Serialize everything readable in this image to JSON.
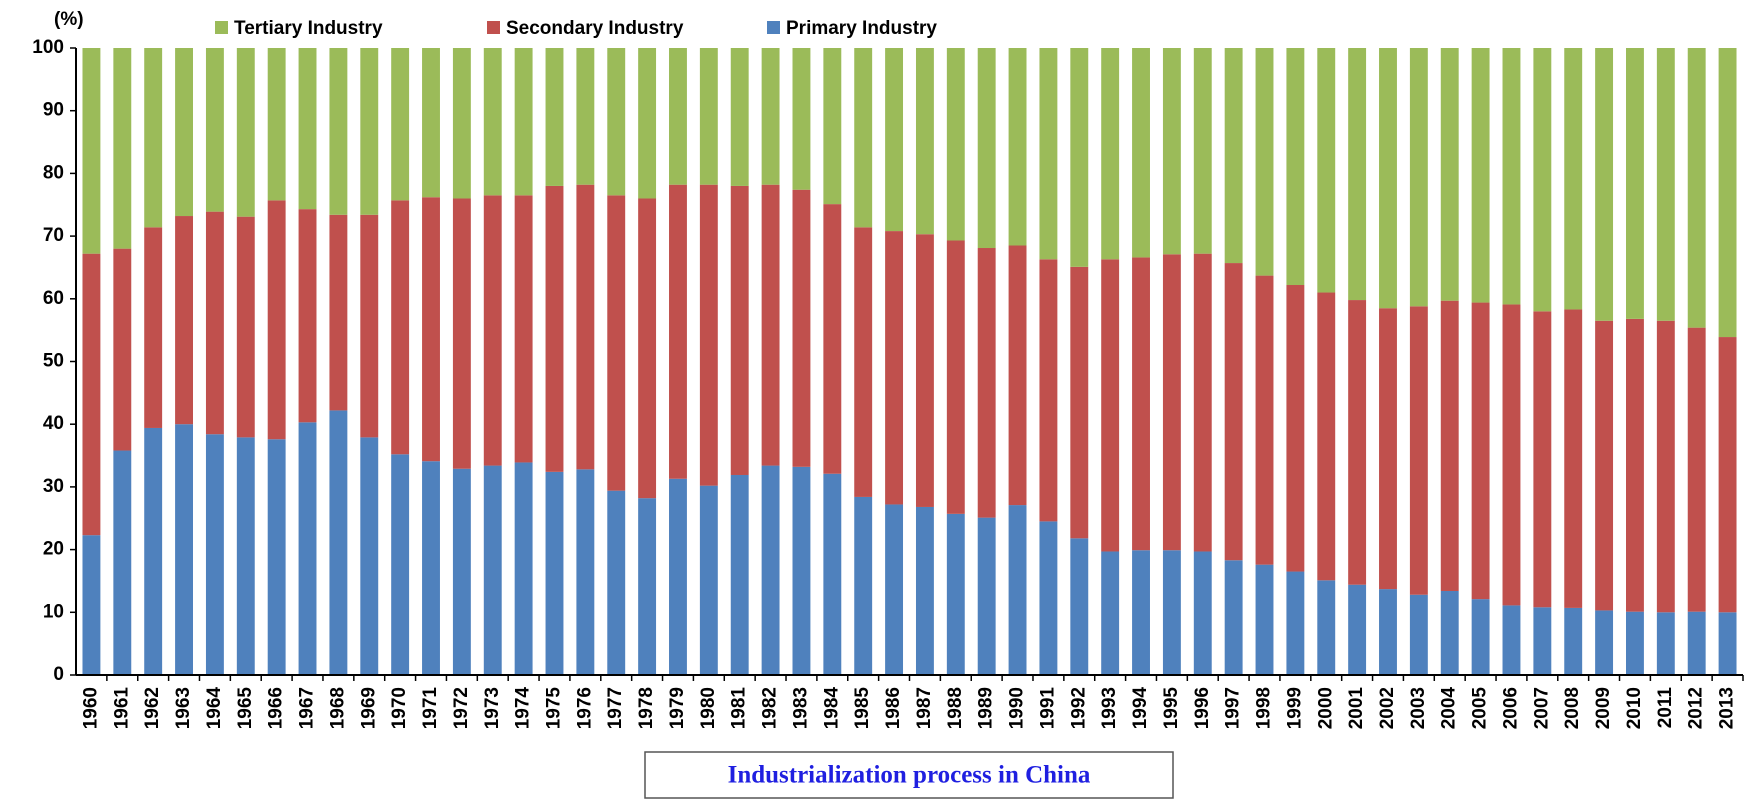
{
  "chart_data": {
    "type": "stacked_bar",
    "title": "Industrialization process in China",
    "y_label": "(%)",
    "categories": [
      "1960",
      "1961",
      "1962",
      "1963",
      "1964",
      "1965",
      "1966",
      "1967",
      "1968",
      "1969",
      "1970",
      "1971",
      "1972",
      "1973",
      "1974",
      "1975",
      "1976",
      "1977",
      "1978",
      "1979",
      "1980",
      "1981",
      "1982",
      "1983",
      "1984",
      "1985",
      "1986",
      "1987",
      "1988",
      "1989",
      "1990",
      "1991",
      "1992",
      "1993",
      "1994",
      "1995",
      "1996",
      "1997",
      "1998",
      "1999",
      "2000",
      "2001",
      "2002",
      "2003",
      "2004",
      "2005",
      "2006",
      "2007",
      "2008",
      "2009",
      "2010",
      "2011",
      "2012",
      "2013"
    ],
    "series": [
      {
        "name": "Tertiary Industry",
        "color": "#9bbb59",
        "values": [
          32.8,
          32,
          28.6,
          26.8,
          26.1,
          26.9,
          24.3,
          25.7,
          26.6,
          26.6,
          24.3,
          23.8,
          24.0,
          23.5,
          23.5,
          22.0,
          21.8,
          23.5,
          24.0,
          21.8,
          21.8,
          22.0,
          21.8,
          22.6,
          24.9,
          28.6,
          29.2,
          29.7,
          30.7,
          31.9,
          31.5,
          33.7,
          34.9,
          33.7,
          33.4,
          32.9,
          32.8,
          34.3,
          36.3,
          37.8,
          39.0,
          40.2,
          41.5,
          41.2,
          40.3,
          40.6,
          40.9,
          42.0,
          41.7,
          43.5,
          43.2,
          43.5,
          44.6,
          46.1
        ]
      },
      {
        "name": "Secondary Industry",
        "color": "#c0504d",
        "values": [
          44.9,
          32.2,
          32,
          33.2,
          35.5,
          35.2,
          38.1,
          34.0,
          31.2,
          35.5,
          40.5,
          42.1,
          43.1,
          43.1,
          42.6,
          45.6,
          45.4,
          47.1,
          47.8,
          46.9,
          48.0,
          46.1,
          44.8,
          44.2,
          43.0,
          43.0,
          43.6,
          43.5,
          43.6,
          43.0,
          41.4,
          41.8,
          43.3,
          46.6,
          46.7,
          47.2,
          47.5,
          47.4,
          46.1,
          45.7,
          45.9,
          45.4,
          44.8,
          46.0,
          46.3,
          47.3,
          48.0,
          47.2,
          47.6,
          46.2,
          46.7,
          46.5,
          45.3,
          43.9
        ]
      },
      {
        "name": "Primary Industry",
        "color": "#4f81bd",
        "values": [
          22.3,
          35.8,
          39.4,
          40.0,
          38.4,
          37.9,
          37.6,
          40.3,
          42.2,
          37.9,
          35.2,
          34.1,
          32.9,
          33.4,
          33.9,
          32.4,
          32.8,
          29.4,
          28.2,
          31.3,
          30.2,
          31.9,
          33.4,
          33.2,
          32.1,
          28.4,
          27.2,
          26.8,
          25.7,
          25.1,
          27.1,
          24.5,
          21.8,
          19.7,
          19.9,
          19.9,
          19.7,
          18.3,
          17.6,
          16.5,
          15.1,
          14.4,
          13.7,
          12.8,
          13.4,
          12.1,
          11.1,
          10.8,
          10.7,
          10.3,
          10.1,
          10.0,
          10.1,
          10.0
        ]
      }
    ],
    "stack_order": "bottom_to_top_reversed",
    "ylim": [
      0,
      100
    ],
    "yticks": [
      0,
      10,
      20,
      30,
      40,
      50,
      60,
      70,
      80,
      90,
      100
    ],
    "grid": false,
    "legend": "top"
  }
}
